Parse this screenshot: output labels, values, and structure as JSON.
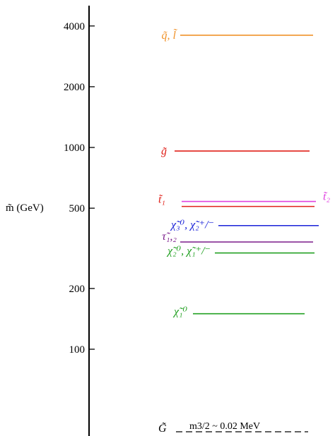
{
  "chart_data": {
    "type": "level-spectrum",
    "ylabel": "m̃ (GeV)",
    "yscale": "log",
    "ylim": [
      50,
      5000
    ],
    "yticks": [
      {
        "value": 100,
        "label": "100"
      },
      {
        "value": 200,
        "label": "200"
      },
      {
        "value": 500,
        "label": "500"
      },
      {
        "value": 1000,
        "label": "1000"
      },
      {
        "value": 2000,
        "label": "2000"
      },
      {
        "value": 4000,
        "label": "4000"
      }
    ],
    "levels": [
      {
        "label": "q̃, l̃",
        "value": 3600,
        "color": "#f0922a"
      },
      {
        "label": "g̃",
        "value": 960,
        "color": "#e0201a"
      },
      {
        "label": "t̃₂",
        "value": 540,
        "color": "#e040e0"
      },
      {
        "label": "t̃₁",
        "value": 510,
        "color": "#e0201a"
      },
      {
        "label": "χ̃₃⁰, χ̃₂⁺/⁻",
        "value": 410,
        "color": "#1a22d8"
      },
      {
        "label": "τ̃₁,₂",
        "value": 340,
        "color": "#7a1a8a"
      },
      {
        "label": "χ̃₂⁰, χ̃₁⁺/⁻",
        "value": 300,
        "color": "#22a022"
      },
      {
        "label": "χ̃₁⁰",
        "value": 150,
        "color": "#22a022"
      }
    ],
    "gravitino": {
      "label": "G̃",
      "annotation": "m3/2 ~ 0.02 MeV",
      "value": 2e-05,
      "color": "#000000"
    }
  }
}
